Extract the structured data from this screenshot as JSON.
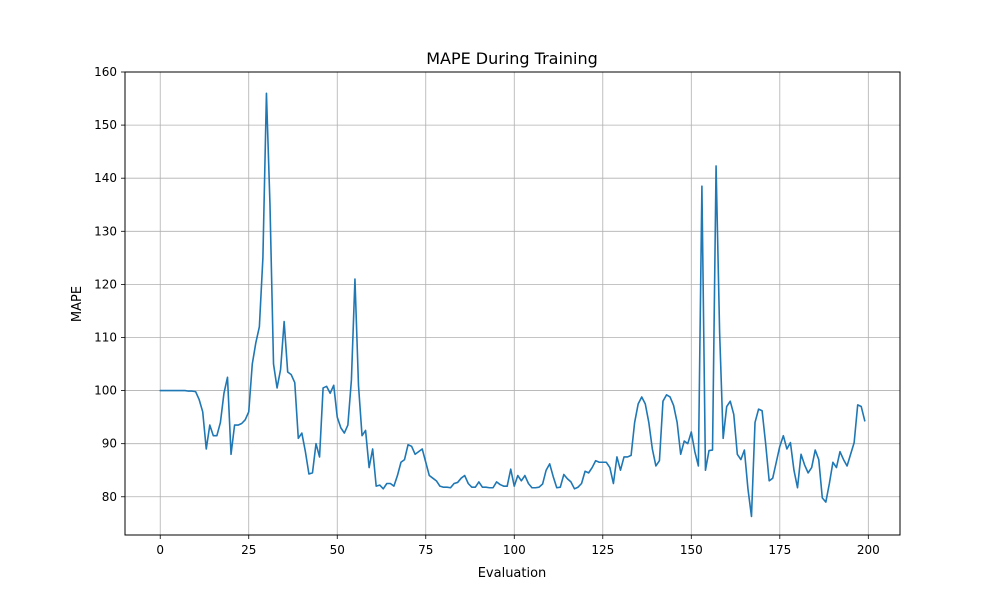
{
  "chart_data": {
    "type": "line",
    "title": "MAPE During Training",
    "xlabel": "Evaluation",
    "ylabel": "MAPE",
    "xlim": [
      -9.95,
      208.95
    ],
    "ylim": [
      72.8,
      160
    ],
    "xticks": [
      0,
      25,
      50,
      75,
      100,
      125,
      150,
      175,
      200
    ],
    "yticks": [
      80,
      90,
      100,
      110,
      120,
      130,
      140,
      150,
      160
    ],
    "grid": true,
    "color": "#1f77b4",
    "series": [
      {
        "x": [
          0,
          1,
          2,
          3,
          4,
          5,
          6,
          7,
          8,
          9,
          10,
          11,
          12,
          13,
          14,
          15,
          16,
          17,
          18,
          19,
          20,
          21,
          22,
          23,
          24,
          25,
          26,
          27,
          28,
          29,
          30,
          31,
          32,
          33,
          34,
          35,
          36,
          37,
          38,
          39,
          40,
          41,
          42,
          43,
          44,
          45,
          46,
          47,
          48,
          49,
          50,
          51,
          52,
          53,
          54,
          55,
          56,
          57,
          58,
          59,
          60,
          61,
          62,
          63,
          64,
          65,
          66,
          67,
          68,
          69,
          70,
          71,
          72,
          73,
          74,
          75,
          76,
          77,
          78,
          79,
          80,
          81,
          82,
          83,
          84,
          85,
          86,
          87,
          88,
          89,
          90,
          91,
          92,
          93,
          94,
          95,
          96,
          97,
          98,
          99,
          100,
          101,
          102,
          103,
          104,
          105,
          106,
          107,
          108,
          109,
          110,
          111,
          112,
          113,
          114,
          115,
          116,
          117,
          118,
          119,
          120,
          121,
          122,
          123,
          124,
          125,
          126,
          127,
          128,
          129,
          130,
          131,
          132,
          133,
          134,
          135,
          136,
          137,
          138,
          139,
          140,
          141,
          142,
          143,
          144,
          145,
          146,
          147,
          148,
          149,
          150,
          151,
          152,
          153,
          154,
          155,
          156,
          157,
          158,
          159,
          160,
          161,
          162,
          163,
          164,
          165,
          166,
          167,
          168,
          169,
          170,
          171,
          172,
          173,
          174,
          175,
          176,
          177,
          178,
          179,
          180,
          181,
          182,
          183,
          184,
          185,
          186,
          187,
          188,
          189,
          190,
          191,
          192,
          193,
          194,
          195,
          196,
          197,
          198,
          199
        ],
        "values": [
          100,
          100,
          100,
          100,
          100,
          100,
          100,
          100,
          99.9,
          99.9,
          99.8,
          98.3,
          96,
          89,
          93.5,
          91.5,
          91.5,
          94,
          99.5,
          102.5,
          88,
          93.5,
          93.5,
          93.8,
          94.5,
          96,
          105,
          109,
          112,
          125,
          156,
          135,
          105,
          100.5,
          104,
          113,
          103.5,
          103,
          101.5,
          91,
          92,
          88.5,
          84.3,
          84.5,
          90,
          87.5,
          100.5,
          100.8,
          99.5,
          101,
          95,
          93,
          92,
          93.5,
          102,
          121,
          101,
          91.5,
          92.5,
          85.5,
          89,
          82,
          82.2,
          81.5,
          82.5,
          82.5,
          82,
          84,
          86.5,
          87,
          89.8,
          89.5,
          88,
          88.5,
          89,
          86.5,
          84,
          83.5,
          83,
          82,
          81.8,
          81.8,
          81.7,
          82.5,
          82.7,
          83.5,
          84,
          82.5,
          81.8,
          81.8,
          82.8,
          81.8,
          81.8,
          81.7,
          81.7,
          82.8,
          82.3,
          82,
          82,
          85.2,
          82,
          84,
          83,
          84,
          82.5,
          81.7,
          81.7,
          81.8,
          82.4,
          85,
          86.2,
          83.8,
          81.7,
          81.8,
          84.2,
          83.4,
          82.8,
          81.5,
          81.8,
          82.5,
          84.8,
          84.5,
          85.5,
          86.8,
          86.5,
          86.5,
          86.5,
          85.5,
          82.5,
          87.5,
          85,
          87.5,
          87.5,
          87.8,
          94,
          97.5,
          98.8,
          97.5,
          94,
          89,
          85.8,
          86.8,
          98,
          99.2,
          98.8,
          97.2,
          94,
          88,
          90.5,
          90,
          92.2,
          88.5,
          85.8,
          138.5,
          85,
          88.7,
          88.8,
          142.3,
          111,
          91,
          97,
          98,
          95.5,
          88,
          87,
          88.8,
          81.5,
          76.3,
          94,
          96.5,
          96.2,
          90,
          83,
          83.5,
          86.5,
          89.5,
          91.5,
          89,
          90.2,
          85,
          81.7,
          88,
          86,
          84.5,
          85.5,
          88.8,
          87,
          79.8,
          79,
          82.5,
          86.5,
          85.5,
          88.5,
          87,
          85.8,
          88,
          90.2,
          97.3,
          97,
          94.3
        ]
      }
    ]
  }
}
